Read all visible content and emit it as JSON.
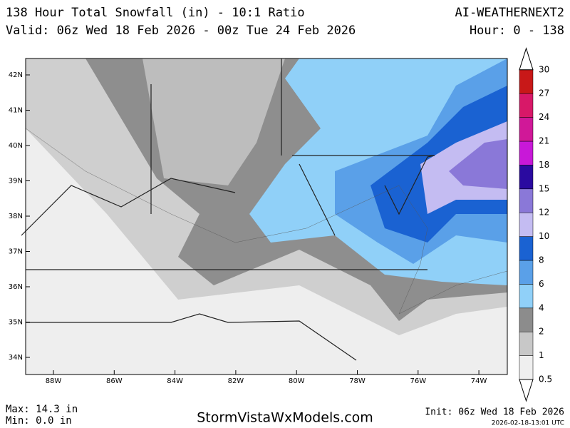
{
  "header": {
    "title": "138 Hour Total Snowfall (in) - 10:1 Ratio",
    "valid": "Valid: 06z Wed 18 Feb 2026 - 00z Tue 24 Feb 2026",
    "model": "AI-WEATHERNEXT2",
    "hour": "Hour: 0 - 138"
  },
  "map": {
    "lat_labels": [
      "42N",
      "41N",
      "40N",
      "39N",
      "38N",
      "37N",
      "36N",
      "35N",
      "34N"
    ],
    "lon_labels": [
      "88W",
      "86W",
      "84W",
      "82W",
      "80W",
      "78W",
      "76W",
      "74W"
    ]
  },
  "colorbar": {
    "levels": [
      0.5,
      1,
      2,
      4,
      6,
      8,
      10,
      12,
      15,
      18,
      21,
      24,
      27,
      30
    ],
    "colors": [
      "#efefef",
      "#c8c8c8",
      "#8c8c8c",
      "#90d0f8",
      "#5aa0e8",
      "#1a62d2",
      "#c4bcf2",
      "#8a78d8",
      "#2a0aa0",
      "#c818d8",
      "#d01898",
      "#d81868",
      "#c81818"
    ]
  },
  "footer": {
    "max": "Max: 14.3 in",
    "min": "Min: 0.0 in",
    "site": "StormVistaWxModels.com",
    "init": "Init: 06z Wed 18 Feb 2026",
    "stamp": "2026-02-18-13:01 UTC"
  }
}
